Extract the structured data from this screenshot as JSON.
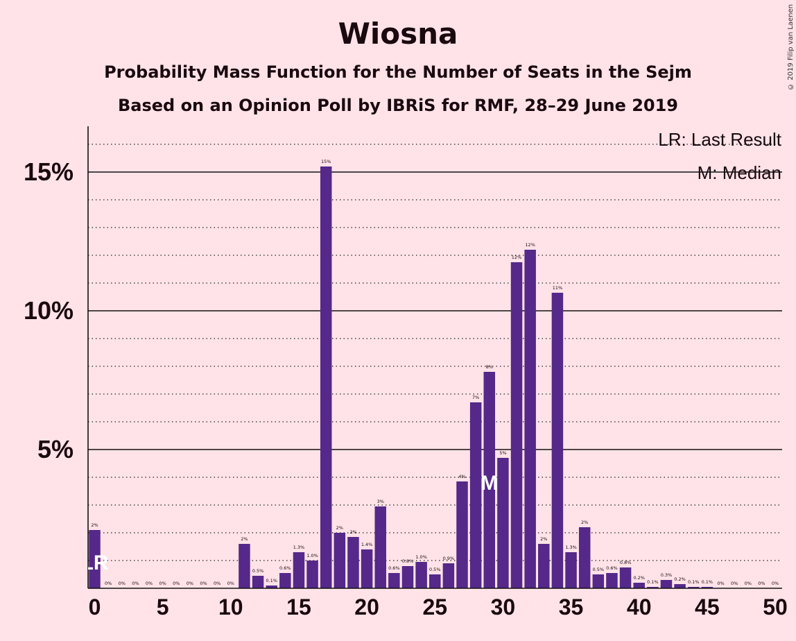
{
  "title": "Wiosna",
  "subtitle1": "Probability Mass Function for the Number of Seats in the Sejm",
  "subtitle2": "Based on an Opinion Poll by IBRiS for RMF, 28–29 June 2019",
  "copyright": "© 2019 Filip van Laenen",
  "legend": {
    "lr": "LR: Last Result",
    "m": "M: Median"
  },
  "colors": {
    "bar": "#55288a",
    "background": "#ffe3e8",
    "text": "#1a0a10"
  },
  "chart_data": {
    "type": "bar",
    "x": [
      0,
      1,
      2,
      3,
      4,
      5,
      6,
      7,
      8,
      9,
      10,
      11,
      12,
      13,
      14,
      15,
      16,
      17,
      18,
      19,
      20,
      21,
      22,
      23,
      24,
      25,
      26,
      27,
      28,
      29,
      30,
      31,
      32,
      33,
      34,
      35,
      36,
      37,
      38,
      39,
      40,
      41,
      42,
      43,
      44,
      45,
      46,
      47,
      48,
      49,
      50
    ],
    "values": [
      2.1,
      0,
      0,
      0,
      0,
      0,
      0,
      0,
      0,
      0,
      0,
      1.6,
      0.45,
      0.1,
      0.55,
      1.3,
      1.0,
      15.2,
      2.0,
      1.85,
      1.4,
      2.95,
      0.55,
      0.8,
      0.95,
      0.5,
      0.9,
      3.85,
      6.7,
      7.8,
      4.7,
      11.75,
      12.2,
      1.6,
      10.65,
      1.3,
      2.2,
      0.5,
      0.55,
      0.75,
      0.2,
      0.05,
      0.3,
      0.15,
      0.05,
      0.05,
      0,
      0,
      0,
      0,
      0
    ],
    "labels": [
      "2%",
      "0%",
      "0%",
      "0%",
      "0%",
      "0%",
      "0%",
      "0%",
      "0%",
      "0%",
      "0%",
      "2%",
      "0.5%",
      "0.1%",
      "0.6%",
      "1.3%",
      "1.0%",
      "15%",
      "2%",
      "2%",
      "1.4%",
      "3%",
      "0.6%",
      "0.8%",
      "1.0%",
      "0.5%",
      "0.9%",
      "4%",
      "7%",
      "8%",
      "5%",
      "12%",
      "12%",
      "2%",
      "11%",
      "1.3%",
      "2%",
      "0.5%",
      "0.6%",
      "0.8%",
      "0.2%",
      "0.1%",
      "0.3%",
      "0.2%",
      "0.1%",
      "0.1%",
      "0%",
      "0%",
      "0%",
      "0%",
      "0%"
    ],
    "ylim": [
      0,
      16.6
    ],
    "yticks": [
      5,
      10,
      15
    ],
    "ytick_labels": [
      "5%",
      "10%",
      "15%"
    ],
    "xticks": [
      0,
      5,
      10,
      15,
      20,
      25,
      30,
      35,
      40,
      45,
      50
    ],
    "xtick_labels": [
      "0",
      "5",
      "10",
      "15",
      "20",
      "25",
      "30",
      "35",
      "40",
      "45",
      "50"
    ],
    "last_result": 0,
    "median": 29,
    "lr_mark": "LR",
    "median_mark": "M"
  }
}
